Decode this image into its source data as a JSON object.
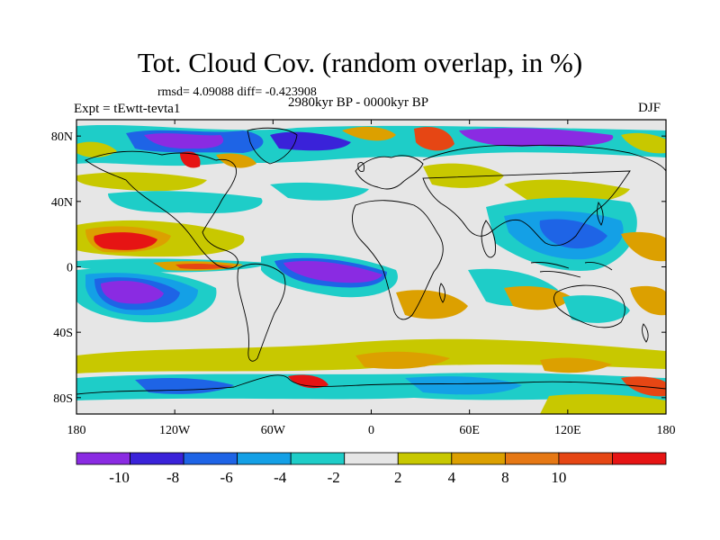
{
  "title": "Tot. Cloud Cov. (random overlap, in %)",
  "stats_line": "rmsd= 4.09088 diff= -0.423908",
  "period_line": "2980kyr BP - 0000kyr BP",
  "experiment_line": "Expt = tEwtt-tevta1",
  "season": "DJF",
  "lat_ticks": [
    {
      "label": "80N",
      "lat": 80
    },
    {
      "label": "40N",
      "lat": 40
    },
    {
      "label": "0",
      "lat": 0
    },
    {
      "label": "40S",
      "lat": -40
    },
    {
      "label": "80S",
      "lat": -80
    }
  ],
  "lon_ticks": [
    {
      "label": "180",
      "lon": -180
    },
    {
      "label": "120W",
      "lon": -120
    },
    {
      "label": "60W",
      "lon": -60
    },
    {
      "label": "0",
      "lon": 0
    },
    {
      "label": "60E",
      "lon": 60
    },
    {
      "label": "120E",
      "lon": 120
    },
    {
      "label": "180",
      "lon": 180
    }
  ],
  "colorbar": {
    "colors": [
      "#8a2be2",
      "#3a22d9",
      "#1e64e6",
      "#14a0e6",
      "#1ecdc8",
      "#e6e6e6",
      "#c8c800",
      "#dca000",
      "#e67814",
      "#e64614",
      "#e61414"
    ],
    "labels": [
      "-10",
      "-8",
      "-6",
      "-4",
      "-2",
      "2",
      "4",
      "8",
      "10"
    ]
  },
  "field_palette": {
    "light": "#e6e6e6",
    "yellow": "#c8c800",
    "orange": "#dca000",
    "dark_orange": "#e67814",
    "red": "#e61414",
    "cyan": "#1ecdc8",
    "light_blue": "#14a0e6",
    "blue": "#1e64e6",
    "dark_blue": "#3a22d9",
    "purple": "#8a2be2",
    "coast": "#000000"
  }
}
